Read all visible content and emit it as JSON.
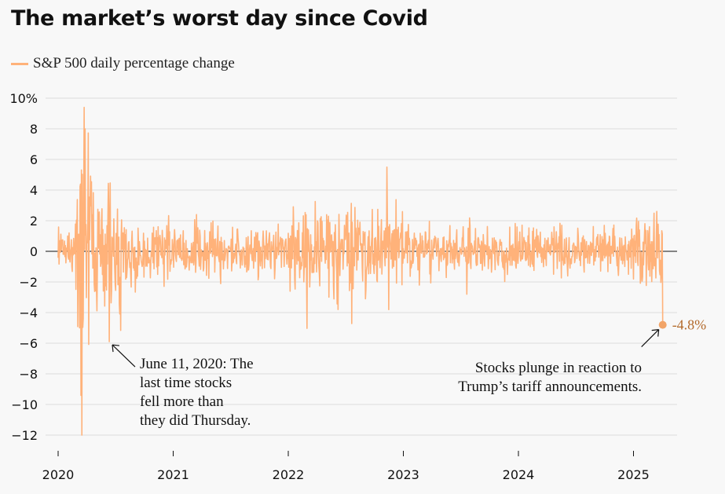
{
  "title": "The market’s worst day since Covid",
  "legend": {
    "label": "S&P 500 daily percentage change",
    "color": "#ffb27a"
  },
  "chart_data": {
    "type": "line",
    "title": "The market’s worst day since Covid",
    "series": [
      {
        "name": "S&P 500 daily percentage change",
        "color": "#ffb27a"
      }
    ],
    "ylim": [
      -12,
      10
    ],
    "y_ticks": [
      -12,
      -10,
      -8,
      -6,
      -4,
      -2,
      0,
      2,
      4,
      6,
      8,
      10
    ],
    "y_tick_labels": [
      "−12",
      "−10",
      "−8",
      "−6",
      "−4",
      "−2",
      "0",
      "2",
      "4",
      "6",
      "8",
      "10%"
    ],
    "x_ticks": [
      "2020",
      "2021",
      "2022",
      "2023",
      "2024",
      "2025"
    ],
    "xlim": [
      "2020-01-01",
      "2025-04-07"
    ],
    "grid": true,
    "legend_position": "top-left",
    "notable_points": [
      {
        "date": "2020-03-16",
        "value": -12.0
      },
      {
        "date": "2020-03-24",
        "value": 9.4
      },
      {
        "date": "2020-06-11",
        "value": -5.9
      },
      {
        "date": "2022-11-10",
        "value": 5.5
      },
      {
        "date": "2025-04-03",
        "value": -4.8
      }
    ],
    "annotations": [
      {
        "date": "2020-06-11",
        "value": -5.9,
        "lines": [
          "June 11, 2020: The",
          "last time stocks",
          "fell  more than",
          "they did Thursday."
        ]
      },
      {
        "date": "2025-04-03",
        "value": -4.8,
        "lines": [
          "Stocks plunge in reaction to",
          "Trump’s tariff announcements."
        ]
      }
    ],
    "end_point": {
      "date": "2025-04-03",
      "value": -4.8,
      "label": "-4.8%"
    }
  }
}
